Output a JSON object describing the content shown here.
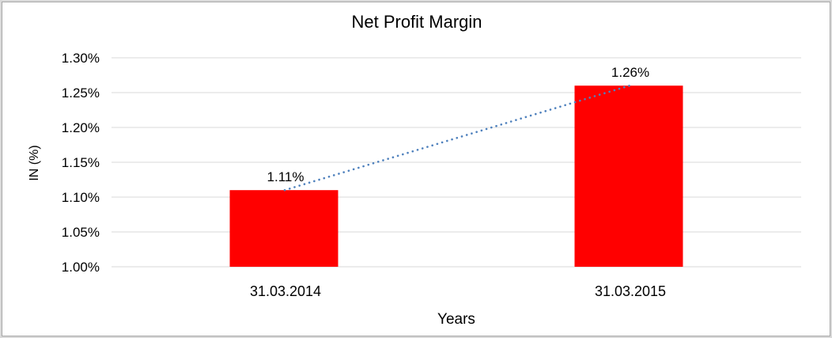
{
  "chart_data": {
    "type": "bar",
    "title": "Net Profit Margin",
    "categories": [
      "31.03.2014",
      "31.03.2015"
    ],
    "values": [
      1.11,
      1.26
    ],
    "data_labels": [
      "1.11%",
      "1.26%"
    ],
    "xlabel": "Years",
    "ylabel": "IN (%)",
    "ylim": [
      1.0,
      1.3
    ],
    "ytick_step": 0.05,
    "ytick_labels": [
      "1.00%",
      "1.05%",
      "1.10%",
      "1.15%",
      "1.20%",
      "1.25%",
      "1.30%"
    ],
    "grid": true,
    "legend": "none",
    "colors": {
      "bar": "#FF0000",
      "gridline": "#d9d9d9",
      "trendline": "#4F81BD",
      "text": "#000000",
      "frame_outer_border": "#d9d9d9",
      "frame_inner_border": "#a6a6a6"
    },
    "trendline": {
      "type": "linear",
      "style": "dotted"
    }
  }
}
